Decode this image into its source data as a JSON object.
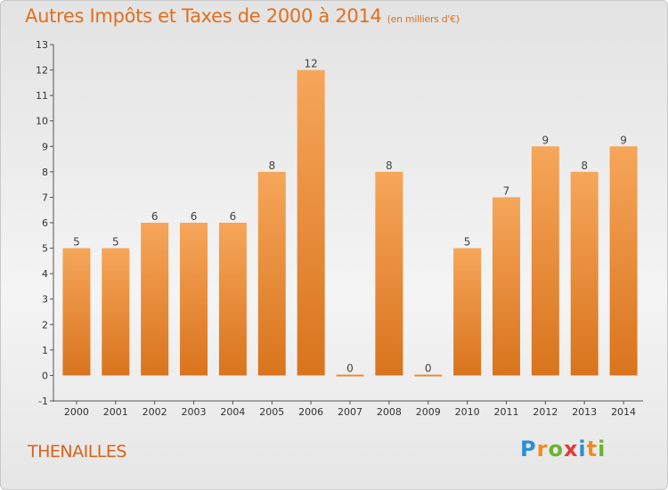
{
  "title": "Autres Impôts et Taxes de 2000 à 2014",
  "subtitle": "(en milliers d'€)",
  "place": "THENAILLES",
  "logo": {
    "letters": [
      "P",
      "r",
      "o",
      "x",
      "i",
      "t",
      "i"
    ],
    "colors": [
      "#2b8fd6",
      "#f08c1e",
      "#6ab42d",
      "#e53935",
      "#2b8fd6",
      "#f08c1e",
      "#6ab42d"
    ]
  },
  "colors": {
    "bar_top": "#f6a65a",
    "bar_bottom": "#d9741d",
    "title": "#e0701e",
    "place": "#d9621a"
  },
  "chart_data": {
    "type": "bar",
    "title": "Autres Impôts et Taxes de 2000 à 2014",
    "subtitle": "(en milliers d'€)",
    "xlabel": "",
    "ylabel": "",
    "categories": [
      "2000",
      "2001",
      "2002",
      "2003",
      "2004",
      "2005",
      "2006",
      "2007",
      "2008",
      "2009",
      "2010",
      "2011",
      "2012",
      "2013",
      "2014"
    ],
    "values": [
      5,
      5,
      6,
      6,
      6,
      8,
      12,
      0,
      8,
      0,
      5,
      7,
      9,
      8,
      9
    ],
    "ylim": [
      -1,
      13
    ],
    "yticks": [
      -1,
      0,
      1,
      2,
      3,
      4,
      5,
      6,
      7,
      8,
      9,
      10,
      11,
      12,
      13
    ],
    "grid": false,
    "legend": "none"
  }
}
